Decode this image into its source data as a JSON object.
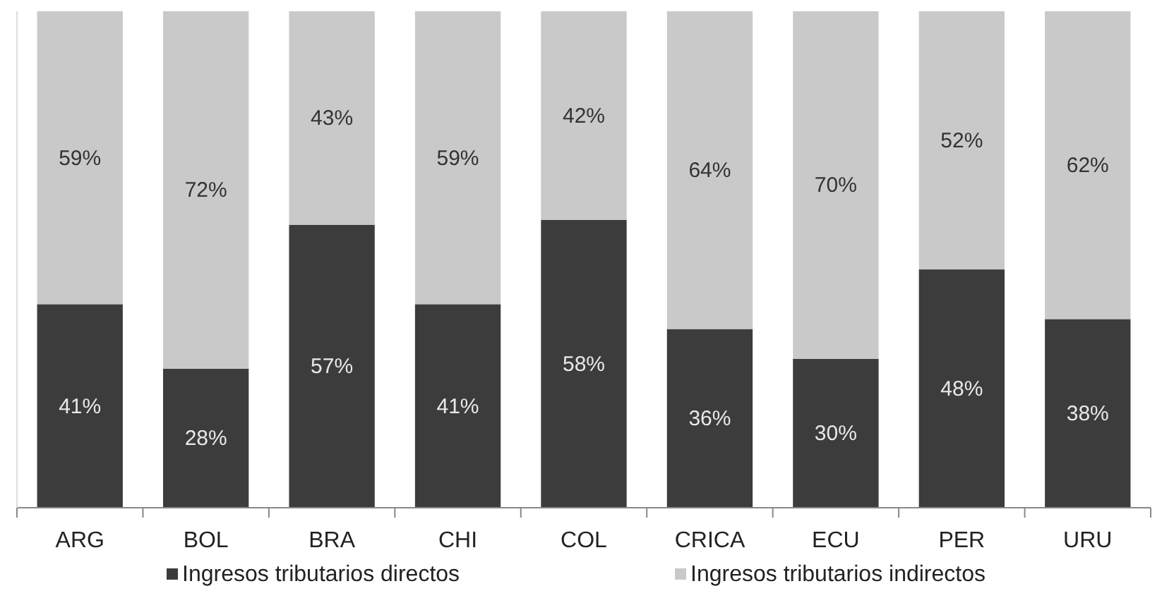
{
  "chart_data": {
    "type": "bar",
    "stacked": true,
    "legend": "bottom",
    "categories": [
      "ARG",
      "BOL",
      "BRA",
      "CHI",
      "COL",
      "CRICA",
      "ECU",
      "PER",
      "URU"
    ],
    "series": [
      {
        "name": "Ingresos tributarios directos",
        "color": "#3c3c3c",
        "values": [
          41,
          28,
          57,
          41,
          58,
          36,
          30,
          48,
          38
        ],
        "value_labels": [
          "41%",
          "28%",
          "57%",
          "41%",
          "58%",
          "36%",
          "30%",
          "48%",
          "38%"
        ]
      },
      {
        "name": "Ingresos tributarios indirectos",
        "color": "#c9c9c9",
        "values": [
          59,
          72,
          43,
          59,
          42,
          64,
          70,
          52,
          62
        ],
        "value_labels": [
          "59%",
          "72%",
          "43%",
          "59%",
          "42%",
          "64%",
          "70%",
          "52%",
          "62%"
        ]
      }
    ]
  }
}
